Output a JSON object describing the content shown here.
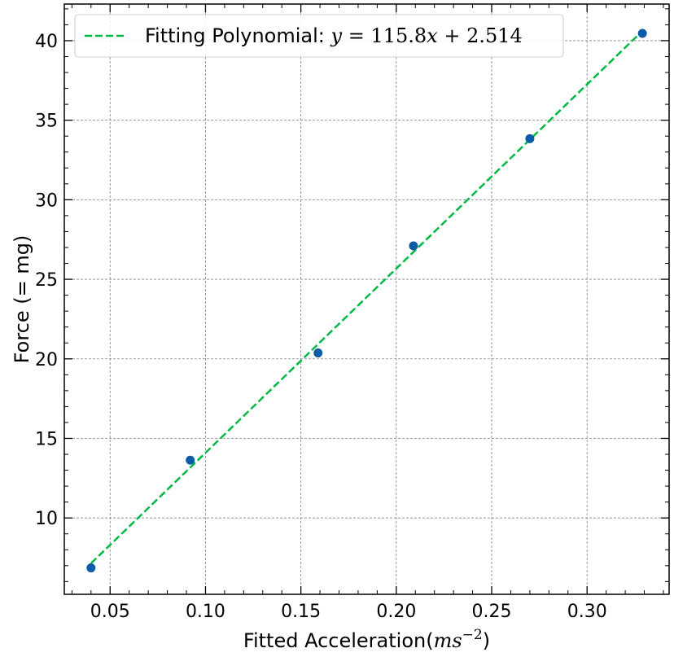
{
  "chart_data": {
    "type": "scatter",
    "xlabel_main": "Fitted Acceleration(",
    "xlabel_var": "ms",
    "xlabel_exp": "−2",
    "xlabel_close": ")",
    "ylabel": "Force (= mg)",
    "xlim": [
      0.026,
      0.343
    ],
    "ylim": [
      5.2,
      42.3
    ],
    "xticks": [
      0.05,
      0.1,
      0.15,
      0.2,
      0.25,
      0.3
    ],
    "xtick_labels": [
      "0.05",
      "0.10",
      "0.15",
      "0.20",
      "0.25",
      "0.30"
    ],
    "yticks": [
      10,
      15,
      20,
      25,
      30,
      35,
      40
    ],
    "ytick_labels": [
      "10",
      "15",
      "20",
      "25",
      "30",
      "35",
      "40"
    ],
    "grid": true,
    "legend_position": "top-left",
    "points": {
      "x": [
        0.04,
        0.092,
        0.159,
        0.209,
        0.27,
        0.329
      ],
      "y": [
        6.86,
        13.63,
        20.37,
        27.1,
        33.84,
        40.46
      ],
      "color": "#0c5da5"
    },
    "fit": {
      "slope": 115.8,
      "intercept": 2.514,
      "x_range": [
        0.04,
        0.329
      ],
      "color": "#00b945",
      "legend_prefix": "Fitting Polynomial: ",
      "eq_y": "y",
      "eq_eq": " = ",
      "eq_slope": "115.8",
      "eq_x": "x",
      "eq_plus": " + ",
      "eq_intercept": "2.514"
    }
  }
}
